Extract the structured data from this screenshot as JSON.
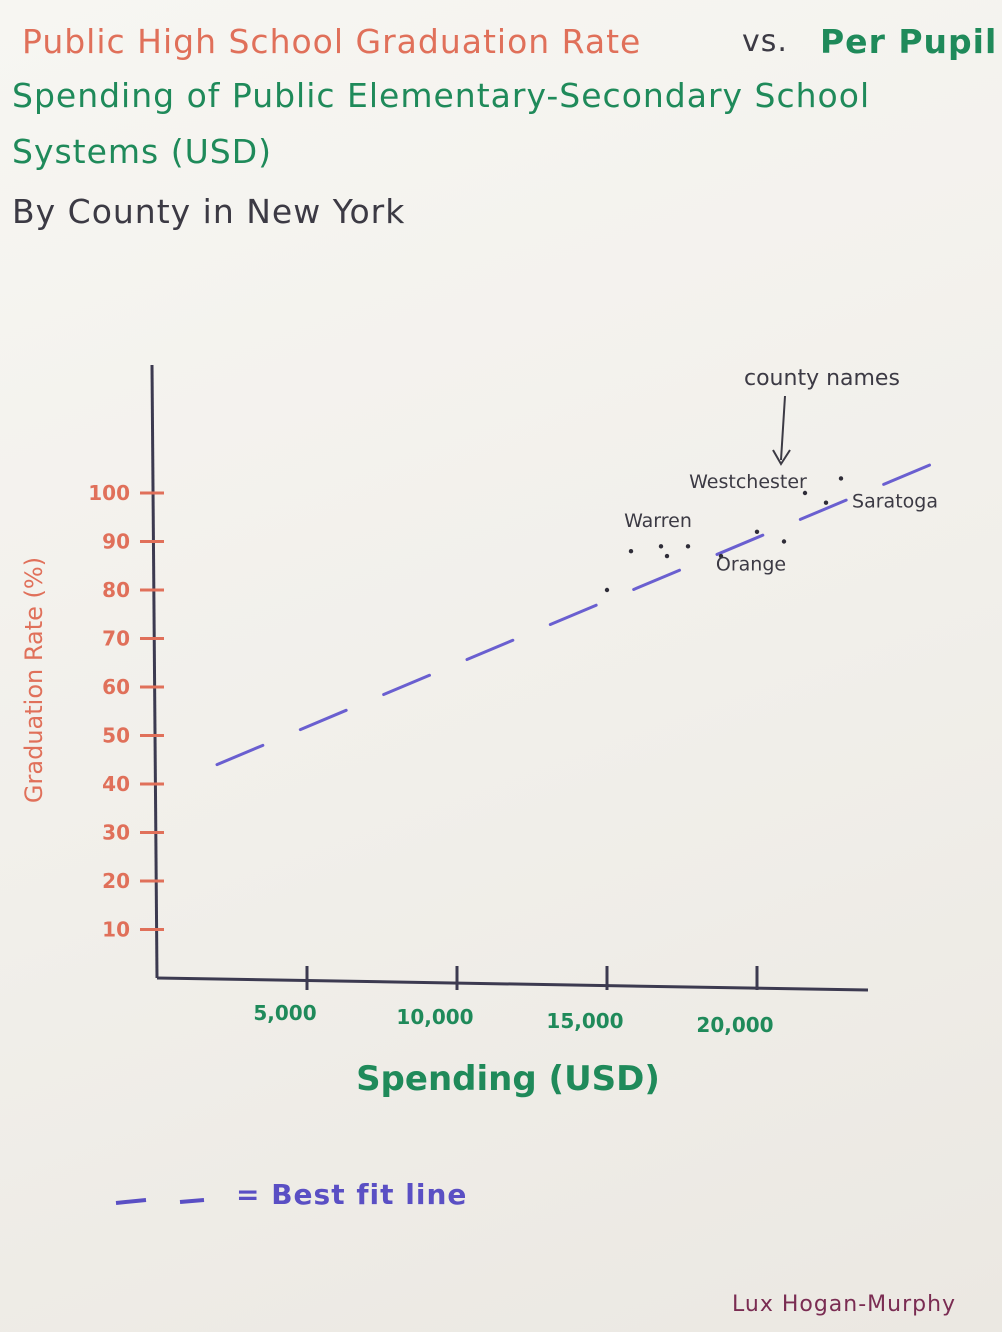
{
  "title": {
    "line1_red": "Public High School Graduation Rate",
    "line1_dark": "vs.",
    "line1_green": "Per Pupil",
    "line2": "Spending of Public Elementary-Secondary School",
    "line3": "Systems (USD)",
    "line4": "By County in New York"
  },
  "annotation": "county names",
  "legend_label": "= Best fit line",
  "signature": "Lux Hogan-Murphy",
  "colors": {
    "title_red": "#e0705a",
    "title_green": "#1f8a5a",
    "fit_line": "#6a5fd0",
    "axis": "#3c3a50"
  },
  "chart_data": {
    "type": "scatter",
    "title": "Public High School Graduation Rate vs. Per Pupil Spending of Public Elementary-Secondary School Systems (USD) By County in New York",
    "xlabel": "Spending (USD)",
    "ylabel": "Graduation Rate (%)",
    "x_ticks": [
      "5,000",
      "10,000",
      "15,000",
      "20,000"
    ],
    "x_tick_values": [
      5000,
      10000,
      15000,
      20000
    ],
    "y_ticks": [
      "10",
      "20",
      "30",
      "40",
      "50",
      "60",
      "70",
      "80",
      "90",
      "100"
    ],
    "y_tick_values": [
      10,
      20,
      30,
      40,
      50,
      60,
      70,
      80,
      90,
      100
    ],
    "points": [
      {
        "x": 15000,
        "y": 80
      },
      {
        "x": 15800,
        "y": 88
      },
      {
        "x": 16800,
        "y": 89
      },
      {
        "x": 17700,
        "y": 89
      },
      {
        "x": 17000,
        "y": 87
      },
      {
        "x": 18800,
        "y": 87
      },
      {
        "x": 20000,
        "y": 92
      },
      {
        "x": 20900,
        "y": 90
      },
      {
        "x": 21600,
        "y": 100
      },
      {
        "x": 22800,
        "y": 103
      },
      {
        "x": 22300,
        "y": 98
      }
    ],
    "point_labels": [
      {
        "text": "Warren",
        "x": 16700,
        "y": 93
      },
      {
        "text": "Orange",
        "x": 19800,
        "y": 84
      },
      {
        "text": "Westchester",
        "x": 19700,
        "y": 101
      },
      {
        "text": "Saratoga",
        "x": 24600,
        "y": 97
      }
    ],
    "fit_line": {
      "style": "dashed",
      "label": "Best fit line",
      "x1": 2000,
      "y1": 44,
      "x2": 27000,
      "y2": 109
    }
  }
}
